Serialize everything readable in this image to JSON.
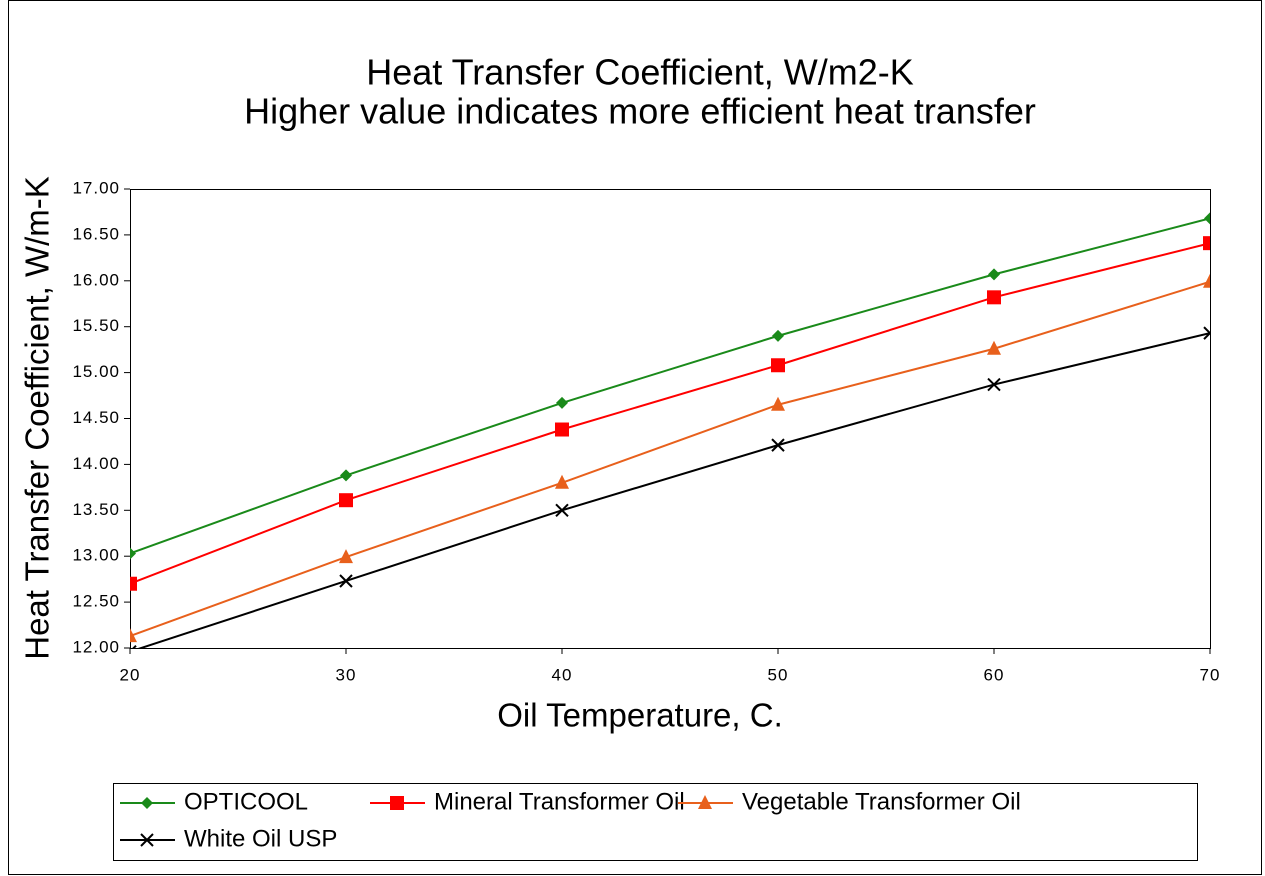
{
  "chart_data": {
    "type": "line",
    "title": "Heat Transfer Coefficient, W/m2-K",
    "subtitle": "Higher value indicates more efficient heat transfer",
    "xlabel": "Oil Temperature, C.",
    "ylabel": "Heat Transfer Coefficient, W/m-K",
    "x": [
      20,
      30,
      40,
      50,
      60,
      70
    ],
    "series": [
      {
        "name": "OPTICOOL",
        "color": "#1a8a1a",
        "marker": "diamond",
        "values": [
          13.03,
          13.88,
          14.67,
          15.4,
          16.07,
          16.68
        ]
      },
      {
        "name": "Mineral Transformer Oil",
        "color": "#ff0000",
        "marker": "square",
        "values": [
          12.7,
          13.61,
          14.38,
          15.08,
          15.82,
          16.41
        ]
      },
      {
        "name": "Vegetable Transformer Oil",
        "color": "#e8601c",
        "marker": "triangle",
        "values": [
          12.13,
          12.99,
          13.8,
          14.65,
          15.26,
          15.99
        ]
      },
      {
        "name": "White Oil USP",
        "color": "#000000",
        "marker": "x",
        "values": [
          11.96,
          12.73,
          13.5,
          14.21,
          14.87,
          15.43
        ]
      }
    ],
    "xlim": [
      20,
      70
    ],
    "xticks": [
      20,
      30,
      40,
      50,
      60,
      70
    ],
    "ylim": [
      12,
      17
    ],
    "yticks": [
      {
        "value": 12,
        "label": "12.00"
      },
      {
        "value": 12.5,
        "label": "12.50"
      },
      {
        "value": 13,
        "label": "13.00"
      },
      {
        "value": 13.5,
        "label": "13.50"
      },
      {
        "value": 14,
        "label": "14.00"
      },
      {
        "value": 14.5,
        "label": "14.50"
      },
      {
        "value": 15,
        "label": "15.00"
      },
      {
        "value": 15.5,
        "label": "15.50"
      },
      {
        "value": 16,
        "label": "16.00"
      },
      {
        "value": 16.5,
        "label": "16.50"
      },
      {
        "value": 17,
        "label": "17.00"
      }
    ],
    "legend": "bottom"
  }
}
